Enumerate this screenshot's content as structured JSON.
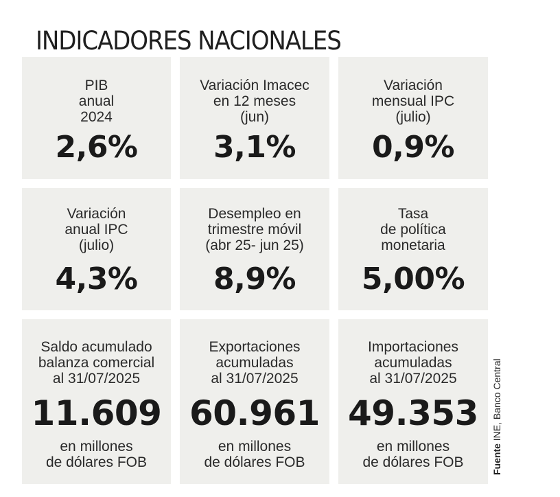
{
  "title": "INDICADORES NACIONALES",
  "cards": [
    {
      "label": "PIB\nanual\n2024",
      "value": "2,6%"
    },
    {
      "label": "Variación Imacec\nen 12 meses\n(jun)",
      "value": "3,1%"
    },
    {
      "label": "Variación\nmensual IPC\n(julio)",
      "value": "0,9%"
    },
    {
      "label": "Variación\nanual IPC\n(julio)",
      "value": "4,3%"
    },
    {
      "label": "Desempleo en\ntrimestre móvil\n(abr 25- jun 25)",
      "value": "8,9%"
    },
    {
      "label": "Tasa\nde política\nmonetaria",
      "value": "5,00%"
    },
    {
      "label": "Saldo acumulado\nbalanza comercial\nal 31/07/2025",
      "value": "11.609",
      "unit": "en millones\nde dólares FOB"
    },
    {
      "label": "Exportaciones\nacumuladas\nal 31/07/2025",
      "value": "60.961",
      "unit": "en millones\nde dólares FOB"
    },
    {
      "label": "Importaciones\nacumuladas\nal 31/07/2025",
      "value": "49.353",
      "unit": "en millones\nde dólares FOB"
    }
  ],
  "source": {
    "label": "Fuente",
    "text": " INE, Banco Central"
  }
}
